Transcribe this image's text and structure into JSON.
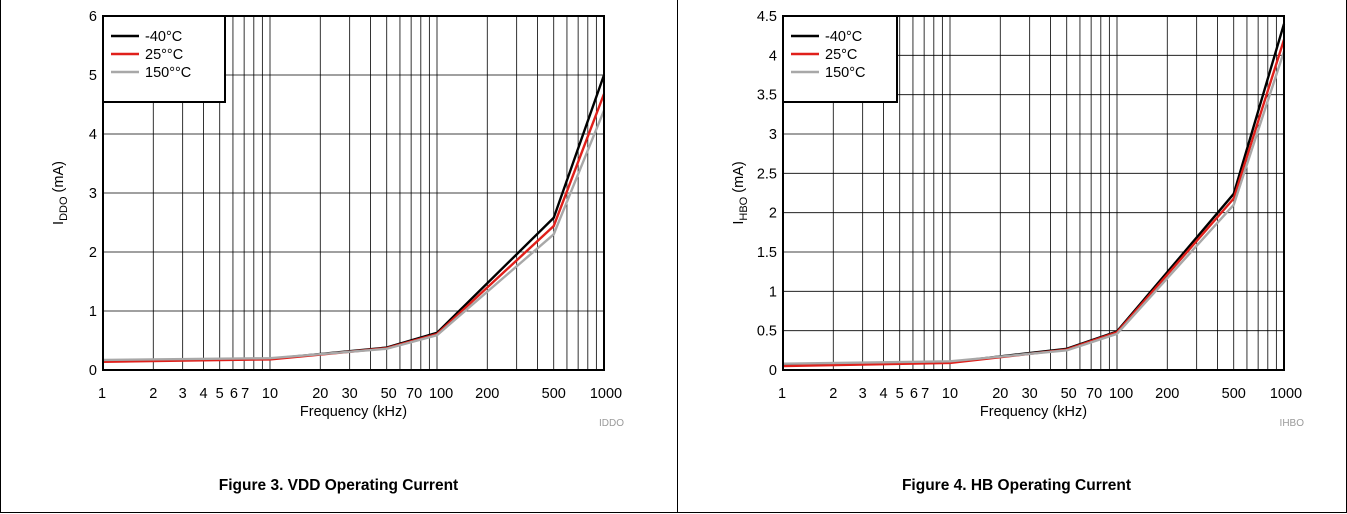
{
  "chart_data": [
    {
      "type": "line",
      "tag": "IDDO",
      "caption": "Figure 3. VDD Operating Current",
      "ylabel": {
        "base": "I",
        "sub": "DDO",
        "suffix": " (mA)"
      },
      "xlabel": "Frequency (kHz)",
      "xscale": "log",
      "xlim": [
        1,
        1000
      ],
      "ylim": [
        0,
        6
      ],
      "grid": true,
      "legend_position": "top-left",
      "x_ticks": [
        1,
        2,
        3,
        4,
        5,
        6,
        7,
        10,
        20,
        30,
        50,
        70,
        100,
        200,
        500,
        1000
      ],
      "x_tick_labels": [
        "1",
        "2",
        "3",
        "4",
        "5",
        "6",
        "7",
        "10",
        "20",
        "30",
        "50",
        "70",
        "100",
        "200",
        "500",
        "1000"
      ],
      "y_ticks": [
        0,
        1,
        2,
        3,
        4,
        5,
        6
      ],
      "y_tick_labels": [
        "0",
        "1",
        "2",
        "3",
        "4",
        "5",
        "6"
      ],
      "x": [
        1,
        10,
        50,
        100,
        500,
        1000
      ],
      "series": [
        {
          "name": "-40°C",
          "color": "#000000",
          "values": [
            0.15,
            0.19,
            0.38,
            0.63,
            2.58,
            5.0
          ]
        },
        {
          "name": "25°°C",
          "color": "#e0201b",
          "values": [
            0.14,
            0.18,
            0.37,
            0.61,
            2.44,
            4.68
          ]
        },
        {
          "name": "150°°C",
          "color": "#a8a8a8",
          "values": [
            0.17,
            0.2,
            0.36,
            0.59,
            2.3,
            4.4
          ]
        }
      ]
    },
    {
      "type": "line",
      "tag": "IHBO",
      "caption": "Figure 4. HB Operating Current",
      "ylabel": {
        "base": "I",
        "sub": "HBO",
        "suffix": " (mA)"
      },
      "xlabel": "Frequency (kHz)",
      "xscale": "log",
      "xlim": [
        1,
        1000
      ],
      "ylim": [
        0,
        4.5
      ],
      "grid": true,
      "legend_position": "top-left",
      "x_ticks": [
        1,
        2,
        3,
        4,
        5,
        6,
        7,
        10,
        20,
        30,
        50,
        70,
        100,
        200,
        500,
        1000
      ],
      "x_tick_labels": [
        "1",
        "2",
        "3",
        "4",
        "5",
        "6",
        "7",
        "10",
        "20",
        "30",
        "50",
        "70",
        "100",
        "200",
        "500",
        "1000"
      ],
      "y_ticks": [
        0,
        0.5,
        1,
        1.5,
        2,
        2.5,
        3,
        3.5,
        4,
        4.5
      ],
      "y_tick_labels": [
        "0",
        "0.5",
        "1",
        "1.5",
        "2",
        "2.5",
        "3",
        "3.5",
        "4",
        "4.5"
      ],
      "x": [
        1,
        10,
        50,
        100,
        500,
        1000
      ],
      "series": [
        {
          "name": "-40°C",
          "color": "#000000",
          "values": [
            0.06,
            0.1,
            0.27,
            0.49,
            2.24,
            4.4
          ]
        },
        {
          "name": "25°C",
          "color": "#e0201b",
          "values": [
            0.05,
            0.09,
            0.26,
            0.48,
            2.18,
            4.2
          ]
        },
        {
          "name": "150°C",
          "color": "#a8a8a8",
          "values": [
            0.08,
            0.11,
            0.25,
            0.46,
            2.1,
            4.05
          ]
        }
      ]
    }
  ]
}
